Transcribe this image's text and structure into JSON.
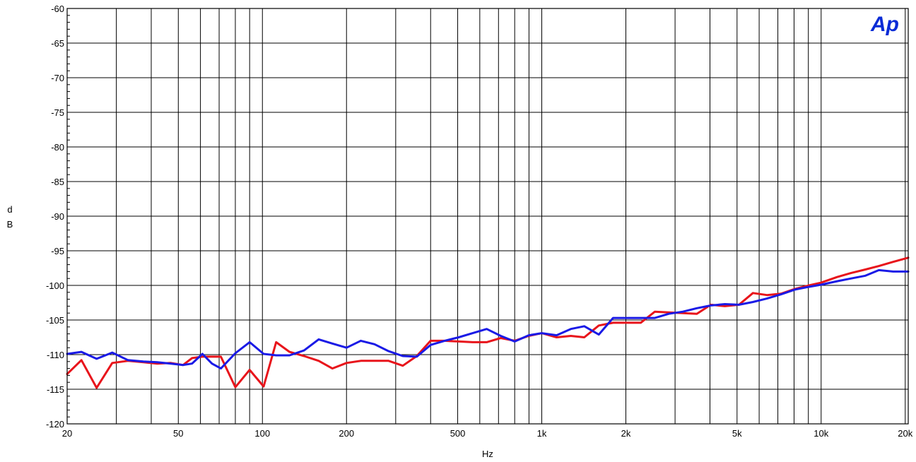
{
  "chart_data": {
    "type": "line",
    "xscale": "log",
    "xlim": [
      20,
      20500
    ],
    "ylim": [
      -120,
      -60
    ],
    "grid": true,
    "xlabel": "Hz",
    "ylabel": "dB",
    "y_ticks": [
      -60,
      -65,
      -70,
      -75,
      -80,
      -85,
      -90,
      -95,
      -100,
      -105,
      -110,
      -115,
      -120
    ],
    "y_tick_labels": [
      "-60",
      "-65",
      "-70",
      "-75",
      "-80",
      "-85",
      "-90",
      "-95",
      "-100",
      "-105",
      "-110",
      "-115",
      "-120"
    ],
    "x_major_ticks": [
      20,
      50,
      100,
      200,
      500,
      1000,
      2000,
      5000,
      10000,
      20000
    ],
    "x_tick_labels": [
      "20",
      "50",
      "100",
      "200",
      "500",
      "1k",
      "2k",
      "5k",
      "10k",
      "20k"
    ],
    "x_grid_lines": [
      30,
      40,
      50,
      60,
      70,
      80,
      90,
      100,
      200,
      300,
      400,
      500,
      600,
      700,
      800,
      900,
      1000,
      2000,
      3000,
      4000,
      5000,
      6000,
      7000,
      8000,
      9000,
      10000,
      20000
    ],
    "series": [
      {
        "color": "#e8141b",
        "x": [
          20,
          22.5,
          25.5,
          29,
          33,
          37.5,
          42,
          47,
          52,
          56,
          61,
          66,
          71,
          80,
          90,
          101,
          112,
          125,
          141,
          159,
          178,
          200,
          225,
          252,
          283,
          318,
          357,
          400,
          449,
          504,
          566,
          635,
          713,
          800,
          898,
          1000,
          1130,
          1270,
          1420,
          1600,
          1800,
          2000,
          2260,
          2540,
          2850,
          3200,
          3590,
          4030,
          4520,
          5080,
          5700,
          6400,
          7180,
          8060,
          9050,
          10000,
          11400,
          12800,
          14400,
          16100,
          18100,
          20500
        ],
        "y": [
          -112.8,
          -110.8,
          -114.8,
          -111.2,
          -110.9,
          -111.1,
          -111.3,
          -111.2,
          -111.5,
          -110.5,
          -110.3,
          -110.3,
          -110.3,
          -114.7,
          -112.2,
          -114.6,
          -108.2,
          -109.6,
          -110.2,
          -110.9,
          -112.0,
          -111.2,
          -110.9,
          -110.9,
          -110.9,
          -111.6,
          -110.2,
          -108.0,
          -108.0,
          -108.1,
          -108.2,
          -108.2,
          -107.6,
          -108.0,
          -107.3,
          -106.9,
          -107.5,
          -107.3,
          -107.5,
          -105.8,
          -105.4,
          -105.4,
          -105.4,
          -103.8,
          -103.9,
          -104.0,
          -104.1,
          -102.8,
          -103.0,
          -102.8,
          -101.1,
          -101.4,
          -101.2,
          -100.5,
          -100.0,
          -99.6,
          -98.8,
          -98.2,
          -97.7,
          -97.2,
          -96.6,
          -96.0
        ]
      },
      {
        "color": "#1a1ae6",
        "x": [
          20,
          22.5,
          25.5,
          29,
          33,
          37.5,
          42,
          47,
          52,
          56,
          61,
          66,
          71,
          80,
          90,
          101,
          112,
          125,
          141,
          159,
          178,
          200,
          225,
          252,
          283,
          318,
          357,
          400,
          449,
          504,
          566,
          635,
          713,
          800,
          898,
          1000,
          1130,
          1270,
          1420,
          1600,
          1800,
          2000,
          2260,
          2540,
          2850,
          3200,
          3590,
          4030,
          4520,
          5080,
          5700,
          6400,
          7180,
          8060,
          9050,
          10000,
          11400,
          12800,
          14400,
          16100,
          18100,
          20500
        ],
        "y": [
          -109.9,
          -109.6,
          -110.6,
          -109.7,
          -110.8,
          -111.0,
          -111.1,
          -111.3,
          -111.5,
          -111.3,
          -109.9,
          -111.3,
          -112.0,
          -109.8,
          -108.2,
          -109.9,
          -110.1,
          -110.1,
          -109.4,
          -107.8,
          -108.4,
          -109.0,
          -108.0,
          -108.5,
          -109.5,
          -110.2,
          -110.3,
          -108.6,
          -108.0,
          -107.5,
          -106.9,
          -106.3,
          -107.3,
          -108.1,
          -107.2,
          -106.9,
          -107.2,
          -106.3,
          -105.9,
          -107.1,
          -104.7,
          -104.7,
          -104.7,
          -104.7,
          -104.1,
          -103.8,
          -103.3,
          -102.9,
          -102.7,
          -102.8,
          -102.4,
          -101.9,
          -101.3,
          -100.6,
          -100.2,
          -99.9,
          -99.4,
          -99.0,
          -98.6,
          -97.8,
          -98.0,
          -98.0
        ]
      }
    ]
  },
  "logo": {
    "text": "Ap",
    "color": "#0a2bd6"
  },
  "colors": {
    "grid": "#000000",
    "background": "#ffffff",
    "frame": "#000000"
  }
}
